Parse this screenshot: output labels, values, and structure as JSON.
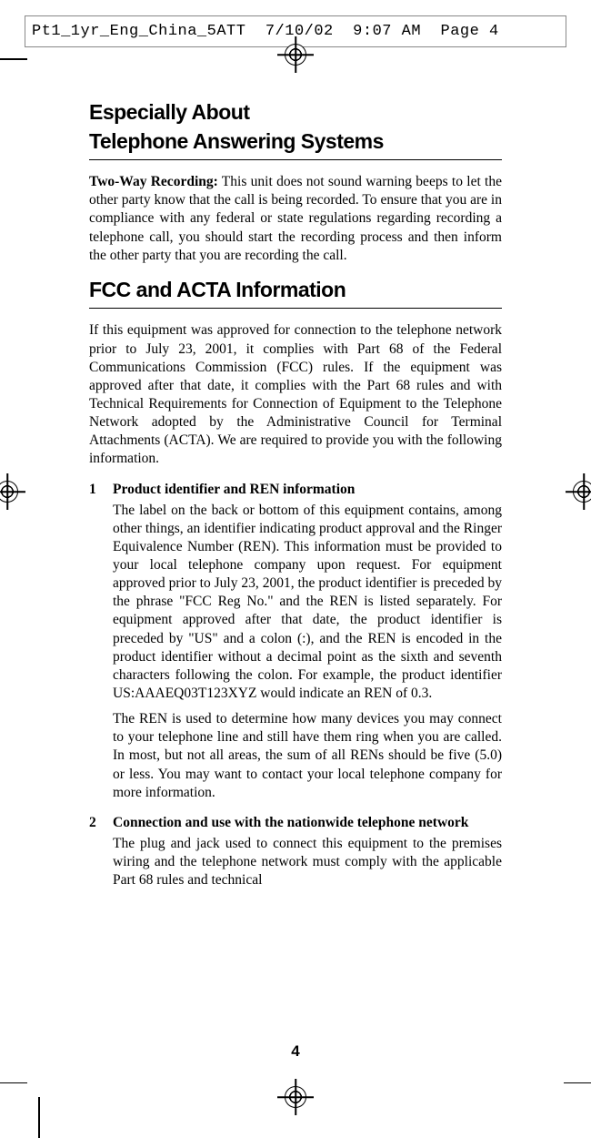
{
  "header": {
    "filename": "Pt1_1yr_Eng_China_5ATT",
    "date": "7/10/02",
    "time": "9:07 AM",
    "page": "Page 4"
  },
  "section1": {
    "heading_line1": "Especially About",
    "heading_line2": "Telephone Answering Systems",
    "para1_bold": "Two-Way Recording:",
    "para1_text": " This unit does not sound warning beeps to let the other party know that the call is being recorded. To ensure that you are in compliance with any federal or state regulations regarding recording a telephone call, you should start the recording process and then inform the other party that you are recording the call."
  },
  "section2": {
    "heading": "FCC and ACTA Information",
    "para1": "If this equipment was approved for connection to the telephone network prior to July 23, 2001, it complies with Part 68 of the Federal Communications Commission (FCC) rules. If the equipment was approved after that date, it complies with the Part 68 rules and with Technical Requirements for Connection of Equipment to the Telephone Network adopted by the Administrative Council for Terminal Attachments (ACTA). We are required to provide you with the following information.",
    "item1": {
      "num": "1",
      "title": "Product identifier and REN information",
      "body1": "The label on the back or bottom of this equipment contains, among other things, an identifier indicating product approval and the Ringer Equivalence Number (REN).  This information must be provided to your local telephone company upon request. For equipment approved prior to July 23, 2001, the product identifier is preceded by the phrase \"FCC Reg No.\" and the REN is listed separately. For equipment approved after that date, the product identifier is preceded by \"US\" and a colon (:), and the REN is encoded in the product identifier without a decimal point as the sixth and seventh characters following the colon. For example, the product identifier US:AAAEQ03T123XYZ would indicate an REN of 0.3.",
      "body2": "The REN is used to determine how many devices you may connect to your telephone line and still have them ring when you are called. In most, but not all areas, the sum of all RENs should be five (5.0) or less. You may want to contact your local telephone company for more information."
    },
    "item2": {
      "num": "2",
      "title": "Connection and use with the nationwide telephone network",
      "body1": "The plug and jack used to connect this equipment to the premises wiring and the telephone network must comply with the applicable Part 68 rules and technical"
    }
  },
  "page_number": "4",
  "colors": {
    "text": "#000000",
    "background": "#ffffff"
  }
}
